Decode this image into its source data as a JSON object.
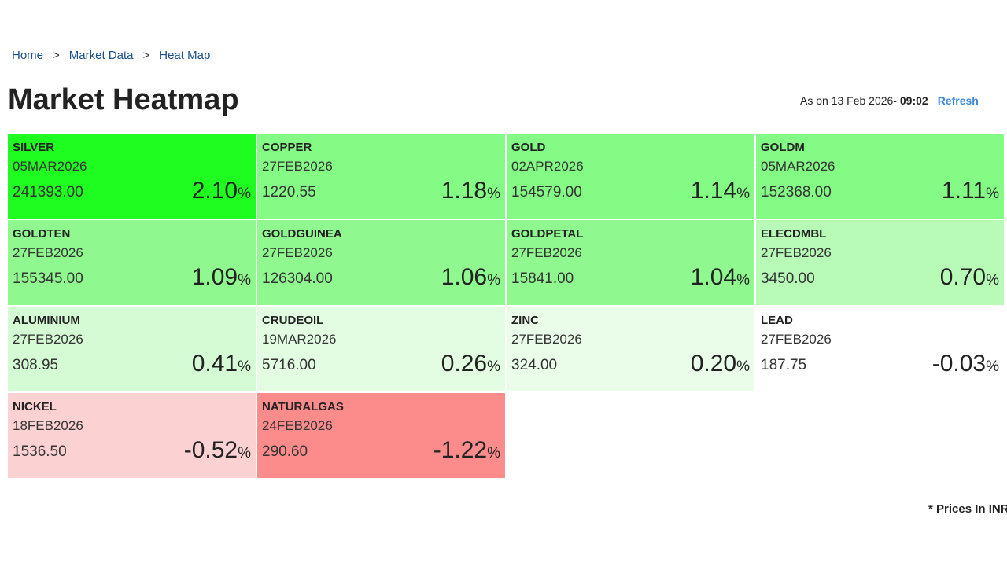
{
  "breadcrumb": {
    "items": [
      "Home",
      "Market Data",
      "Heat Map"
    ],
    "separator": ">"
  },
  "header": {
    "title": "Market Heatmap",
    "as_on": "As on 13 Feb 2026- ",
    "time": "09:02",
    "refresh": "Refresh"
  },
  "change_unit": "%",
  "tiles": [
    {
      "name": "SILVER",
      "expiry": "05MAR2026",
      "price": "241393.00",
      "change": "2.10",
      "color": "#1ffc1f"
    },
    {
      "name": "COPPER",
      "expiry": "27FEB2026",
      "price": "1220.55",
      "change": "1.18",
      "color": "#84fb84"
    },
    {
      "name": "GOLD",
      "expiry": "02APR2026",
      "price": "154579.00",
      "change": "1.14",
      "color": "#84fb84"
    },
    {
      "name": "GOLDM",
      "expiry": "05MAR2026",
      "price": "152368.00",
      "change": "1.11",
      "color": "#84fb84"
    },
    {
      "name": "GOLDTEN",
      "expiry": "27FEB2026",
      "price": "155345.00",
      "change": "1.09",
      "color": "#8ff98f"
    },
    {
      "name": "GOLDGUINEA",
      "expiry": "27FEB2026",
      "price": "126304.00",
      "change": "1.06",
      "color": "#8ff98f"
    },
    {
      "name": "GOLDPETAL",
      "expiry": "27FEB2026",
      "price": "15841.00",
      "change": "1.04",
      "color": "#8ff98f"
    },
    {
      "name": "ELECDMBL",
      "expiry": "27FEB2026",
      "price": "3450.00",
      "change": "0.70",
      "color": "#b7fbb7"
    },
    {
      "name": "ALUMINIUM",
      "expiry": "27FEB2026",
      "price": "308.95",
      "change": "0.41",
      "color": "#d5fbd5"
    },
    {
      "name": "CRUDEOIL",
      "expiry": "19MAR2026",
      "price": "5716.00",
      "change": "0.26",
      "color": "#e3fde3"
    },
    {
      "name": "ZINC",
      "expiry": "27FEB2026",
      "price": "324.00",
      "change": "0.20",
      "color": "#e9fde9"
    },
    {
      "name": "LEAD",
      "expiry": "27FEB2026",
      "price": "187.75",
      "change": "-0.03",
      "color": "#ffffff"
    },
    {
      "name": "NICKEL",
      "expiry": "18FEB2026",
      "price": "1536.50",
      "change": "-0.52",
      "color": "#fcd1d1"
    },
    {
      "name": "NATURALGAS",
      "expiry": "24FEB2026",
      "price": "290.60",
      "change": "-1.22",
      "color": "#fc8c8c"
    }
  ],
  "footnote": "* Prices In INR"
}
